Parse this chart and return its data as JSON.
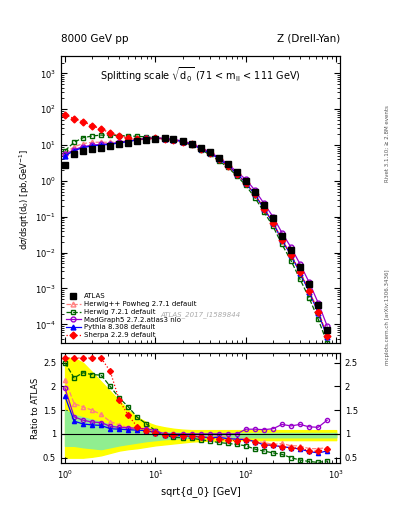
{
  "title_left": "8000 GeV pp",
  "title_right": "Z (Drell-Yan)",
  "plot_title": "Splitting scale $\\sqrt{\\mathdefault{d_0}}$ (71 < m$_{\\mathdefault{ll}}$ < 111 GeV)",
  "watermark": "ATLAS_2017_I1589844",
  "side_text_top": "Rivet 3.1.10; ≥ 2.8M events",
  "side_text_bot": "mcplots.cern.ch [arXiv:1306.3436]",
  "xlim": [
    0.9,
    1100
  ],
  "ylim_main": [
    3e-05,
    3000.0
  ],
  "ylim_ratio": [
    0.38,
    2.7
  ],
  "ratio_yticks": [
    0.5,
    1.0,
    1.5,
    2.0,
    2.5
  ],
  "ratio_yticklabels": [
    "0.5",
    "1",
    "1.5",
    "2",
    "2.5"
  ],
  "atlas_x": [
    1.0,
    1.26,
    1.58,
    2.0,
    2.51,
    3.16,
    3.98,
    5.01,
    6.31,
    7.94,
    10.0,
    12.6,
    15.8,
    20.0,
    25.1,
    31.6,
    39.8,
    50.1,
    63.1,
    79.4,
    100,
    126,
    158,
    200,
    251,
    316,
    398,
    501,
    631,
    794
  ],
  "atlas_y": [
    2.8,
    5.5,
    7.0,
    8.0,
    8.5,
    9.5,
    10.5,
    11.5,
    13.0,
    14.0,
    15.0,
    15.5,
    14.5,
    13.0,
    11.0,
    8.5,
    6.5,
    4.5,
    3.0,
    1.8,
    1.0,
    0.5,
    0.22,
    0.09,
    0.03,
    0.012,
    0.004,
    0.0013,
    0.00035,
    7e-05
  ],
  "herwig_powheg_x": [
    1.0,
    1.26,
    1.58,
    2.0,
    2.51,
    3.16,
    3.98,
    5.01,
    6.31,
    7.94,
    10.0,
    12.6,
    15.8,
    20.0,
    25.1,
    31.6,
    39.8,
    50.1,
    63.1,
    79.4,
    100,
    126,
    158,
    200,
    251,
    316,
    398,
    501,
    631,
    794
  ],
  "herwig_powheg_y": [
    6.0,
    9.0,
    11.0,
    12.0,
    12.0,
    12.0,
    12.5,
    13.0,
    14.0,
    15.0,
    15.5,
    15.0,
    14.0,
    12.5,
    10.5,
    8.2,
    6.2,
    4.3,
    2.8,
    1.6,
    0.9,
    0.42,
    0.18,
    0.07,
    0.024,
    0.009,
    0.003,
    0.0009,
    0.00024,
    5e-05
  ],
  "herwig721_x": [
    1.0,
    1.26,
    1.58,
    2.0,
    2.51,
    3.16,
    3.98,
    5.01,
    6.31,
    7.94,
    10.0,
    12.6,
    15.8,
    20.0,
    25.1,
    31.6,
    39.8,
    50.1,
    63.1,
    79.4,
    100,
    126,
    158,
    200,
    251,
    316,
    398,
    501,
    631,
    794
  ],
  "herwig721_y": [
    7.0,
    12.0,
    16.0,
    18.0,
    19.0,
    19.0,
    18.5,
    18.0,
    17.5,
    17.0,
    16.0,
    15.0,
    13.5,
    12.0,
    10.0,
    7.5,
    5.5,
    3.7,
    2.4,
    1.4,
    0.75,
    0.34,
    0.14,
    0.054,
    0.017,
    0.006,
    0.0018,
    0.00055,
    0.00014,
    3e-05
  ],
  "madgraph_x": [
    1.0,
    1.26,
    1.58,
    2.0,
    2.51,
    3.16,
    3.98,
    5.01,
    6.31,
    7.94,
    10.0,
    12.6,
    15.8,
    20.0,
    25.1,
    31.6,
    39.8,
    50.1,
    63.1,
    79.4,
    100,
    126,
    158,
    200,
    251,
    316,
    398,
    501,
    631,
    794
  ],
  "madgraph_y": [
    5.5,
    7.5,
    9.0,
    10.0,
    10.5,
    11.0,
    12.0,
    13.0,
    14.5,
    15.5,
    16.0,
    15.5,
    14.5,
    13.0,
    11.0,
    8.5,
    6.5,
    4.5,
    3.0,
    1.8,
    1.1,
    0.55,
    0.24,
    0.1,
    0.036,
    0.014,
    0.0048,
    0.0015,
    0.0004,
    9e-05
  ],
  "pythia_x": [
    1.0,
    1.26,
    1.58,
    2.0,
    2.51,
    3.16,
    3.98,
    5.01,
    6.31,
    7.94,
    10.0,
    12.6,
    15.8,
    20.0,
    25.1,
    31.6,
    39.8,
    50.1,
    63.1,
    79.4,
    100,
    126,
    158,
    200,
    251,
    316,
    398,
    501,
    631,
    794
  ],
  "pythia_y": [
    5.0,
    7.0,
    8.5,
    9.5,
    10.0,
    10.5,
    11.5,
    12.5,
    14.0,
    15.0,
    15.5,
    15.0,
    14.0,
    12.5,
    10.5,
    8.0,
    6.0,
    4.2,
    2.7,
    1.6,
    0.88,
    0.42,
    0.17,
    0.068,
    0.022,
    0.0085,
    0.0027,
    0.00082,
    0.00021,
    4.5e-05
  ],
  "sherpa_x": [
    1.0,
    1.26,
    1.58,
    2.0,
    2.51,
    3.16,
    3.98,
    5.01,
    6.31,
    7.94,
    10.0,
    12.6,
    15.8,
    20.0,
    25.1,
    31.6,
    39.8,
    50.1,
    63.1,
    79.4,
    100,
    126,
    158,
    200,
    251,
    316,
    398,
    501,
    631,
    794
  ],
  "sherpa_y": [
    70.0,
    55.0,
    45.0,
    35.0,
    28.0,
    22.0,
    18.0,
    16.0,
    15.0,
    15.0,
    15.5,
    15.0,
    14.0,
    12.5,
    10.5,
    8.0,
    6.0,
    4.0,
    2.6,
    1.55,
    0.88,
    0.42,
    0.17,
    0.068,
    0.022,
    0.0085,
    0.0028,
    0.00085,
    0.00022,
    4.8e-05
  ],
  "ratio_herwig_powheg": [
    2.14,
    1.64,
    1.57,
    1.5,
    1.41,
    1.26,
    1.19,
    1.13,
    1.08,
    1.07,
    1.03,
    0.97,
    0.97,
    0.96,
    0.95,
    0.96,
    0.95,
    0.96,
    0.93,
    0.89,
    0.9,
    0.84,
    0.82,
    0.78,
    0.8,
    0.75,
    0.75,
    0.69,
    0.69,
    0.71
  ],
  "ratio_herwig721": [
    2.5,
    2.18,
    2.29,
    2.25,
    2.24,
    2.0,
    1.76,
    1.57,
    1.35,
    1.21,
    1.07,
    0.97,
    0.93,
    0.92,
    0.91,
    0.88,
    0.85,
    0.82,
    0.8,
    0.78,
    0.75,
    0.68,
    0.64,
    0.6,
    0.57,
    0.5,
    0.45,
    0.42,
    0.4,
    0.43
  ],
  "ratio_madgraph": [
    1.96,
    1.36,
    1.29,
    1.25,
    1.24,
    1.16,
    1.14,
    1.13,
    1.12,
    1.11,
    1.07,
    1.0,
    1.0,
    1.0,
    1.0,
    1.0,
    1.0,
    1.0,
    1.0,
    1.0,
    1.1,
    1.1,
    1.09,
    1.11,
    1.2,
    1.17,
    1.2,
    1.15,
    1.14,
    1.29
  ],
  "ratio_pythia": [
    1.79,
    1.27,
    1.21,
    1.19,
    1.18,
    1.11,
    1.1,
    1.09,
    1.08,
    1.07,
    1.03,
    0.97,
    0.97,
    0.96,
    0.95,
    0.94,
    0.92,
    0.93,
    0.9,
    0.89,
    0.88,
    0.84,
    0.77,
    0.76,
    0.73,
    0.71,
    0.68,
    0.63,
    0.6,
    0.64
  ],
  "ratio_sherpa": [
    2.6,
    2.6,
    2.6,
    2.6,
    2.6,
    2.32,
    1.71,
    1.39,
    1.15,
    1.07,
    1.03,
    0.97,
    0.97,
    0.96,
    0.95,
    0.94,
    0.92,
    0.89,
    0.87,
    0.86,
    0.88,
    0.84,
    0.77,
    0.76,
    0.73,
    0.71,
    0.7,
    0.65,
    0.63,
    0.69
  ],
  "band_yellow_x": [
    1.0,
    1.26,
    1.58,
    2.0,
    2.51,
    3.16,
    3.98,
    5.01,
    6.31,
    7.94,
    10.0,
    12.6,
    15.8,
    20.0,
    25.1,
    31.6,
    39.8,
    50.1,
    63.1,
    79.4,
    100,
    126,
    158,
    200,
    251,
    316,
    398,
    501,
    631,
    794,
    1000
  ],
  "band_yellow_lo": [
    0.5,
    0.5,
    0.5,
    0.52,
    0.55,
    0.6,
    0.65,
    0.68,
    0.7,
    0.73,
    0.76,
    0.78,
    0.8,
    0.82,
    0.84,
    0.85,
    0.86,
    0.86,
    0.86,
    0.87,
    0.87,
    0.87,
    0.87,
    0.87,
    0.87,
    0.87,
    0.87,
    0.87,
    0.87,
    0.87,
    0.87
  ],
  "band_yellow_hi": [
    2.6,
    2.6,
    2.5,
    2.3,
    2.1,
    1.9,
    1.7,
    1.5,
    1.35,
    1.25,
    1.18,
    1.14,
    1.11,
    1.09,
    1.08,
    1.08,
    1.08,
    1.08,
    1.08,
    1.08,
    1.08,
    1.08,
    1.08,
    1.08,
    1.08,
    1.08,
    1.08,
    1.08,
    1.08,
    1.08,
    1.08
  ],
  "band_green_lo": [
    0.75,
    0.75,
    0.72,
    0.7,
    0.68,
    0.72,
    0.76,
    0.79,
    0.82,
    0.85,
    0.87,
    0.89,
    0.9,
    0.91,
    0.92,
    0.92,
    0.93,
    0.93,
    0.93,
    0.93,
    0.93,
    0.93,
    0.93,
    0.93,
    0.93,
    0.93,
    0.93,
    0.93,
    0.93,
    0.93,
    0.93
  ],
  "band_green_hi": [
    1.5,
    1.4,
    1.35,
    1.3,
    1.25,
    1.2,
    1.15,
    1.1,
    1.07,
    1.05,
    1.04,
    1.03,
    1.03,
    1.02,
    1.02,
    1.02,
    1.02,
    1.02,
    1.02,
    1.02,
    1.02,
    1.02,
    1.02,
    1.02,
    1.02,
    1.02,
    1.02,
    1.02,
    1.02,
    1.02,
    1.02
  ]
}
